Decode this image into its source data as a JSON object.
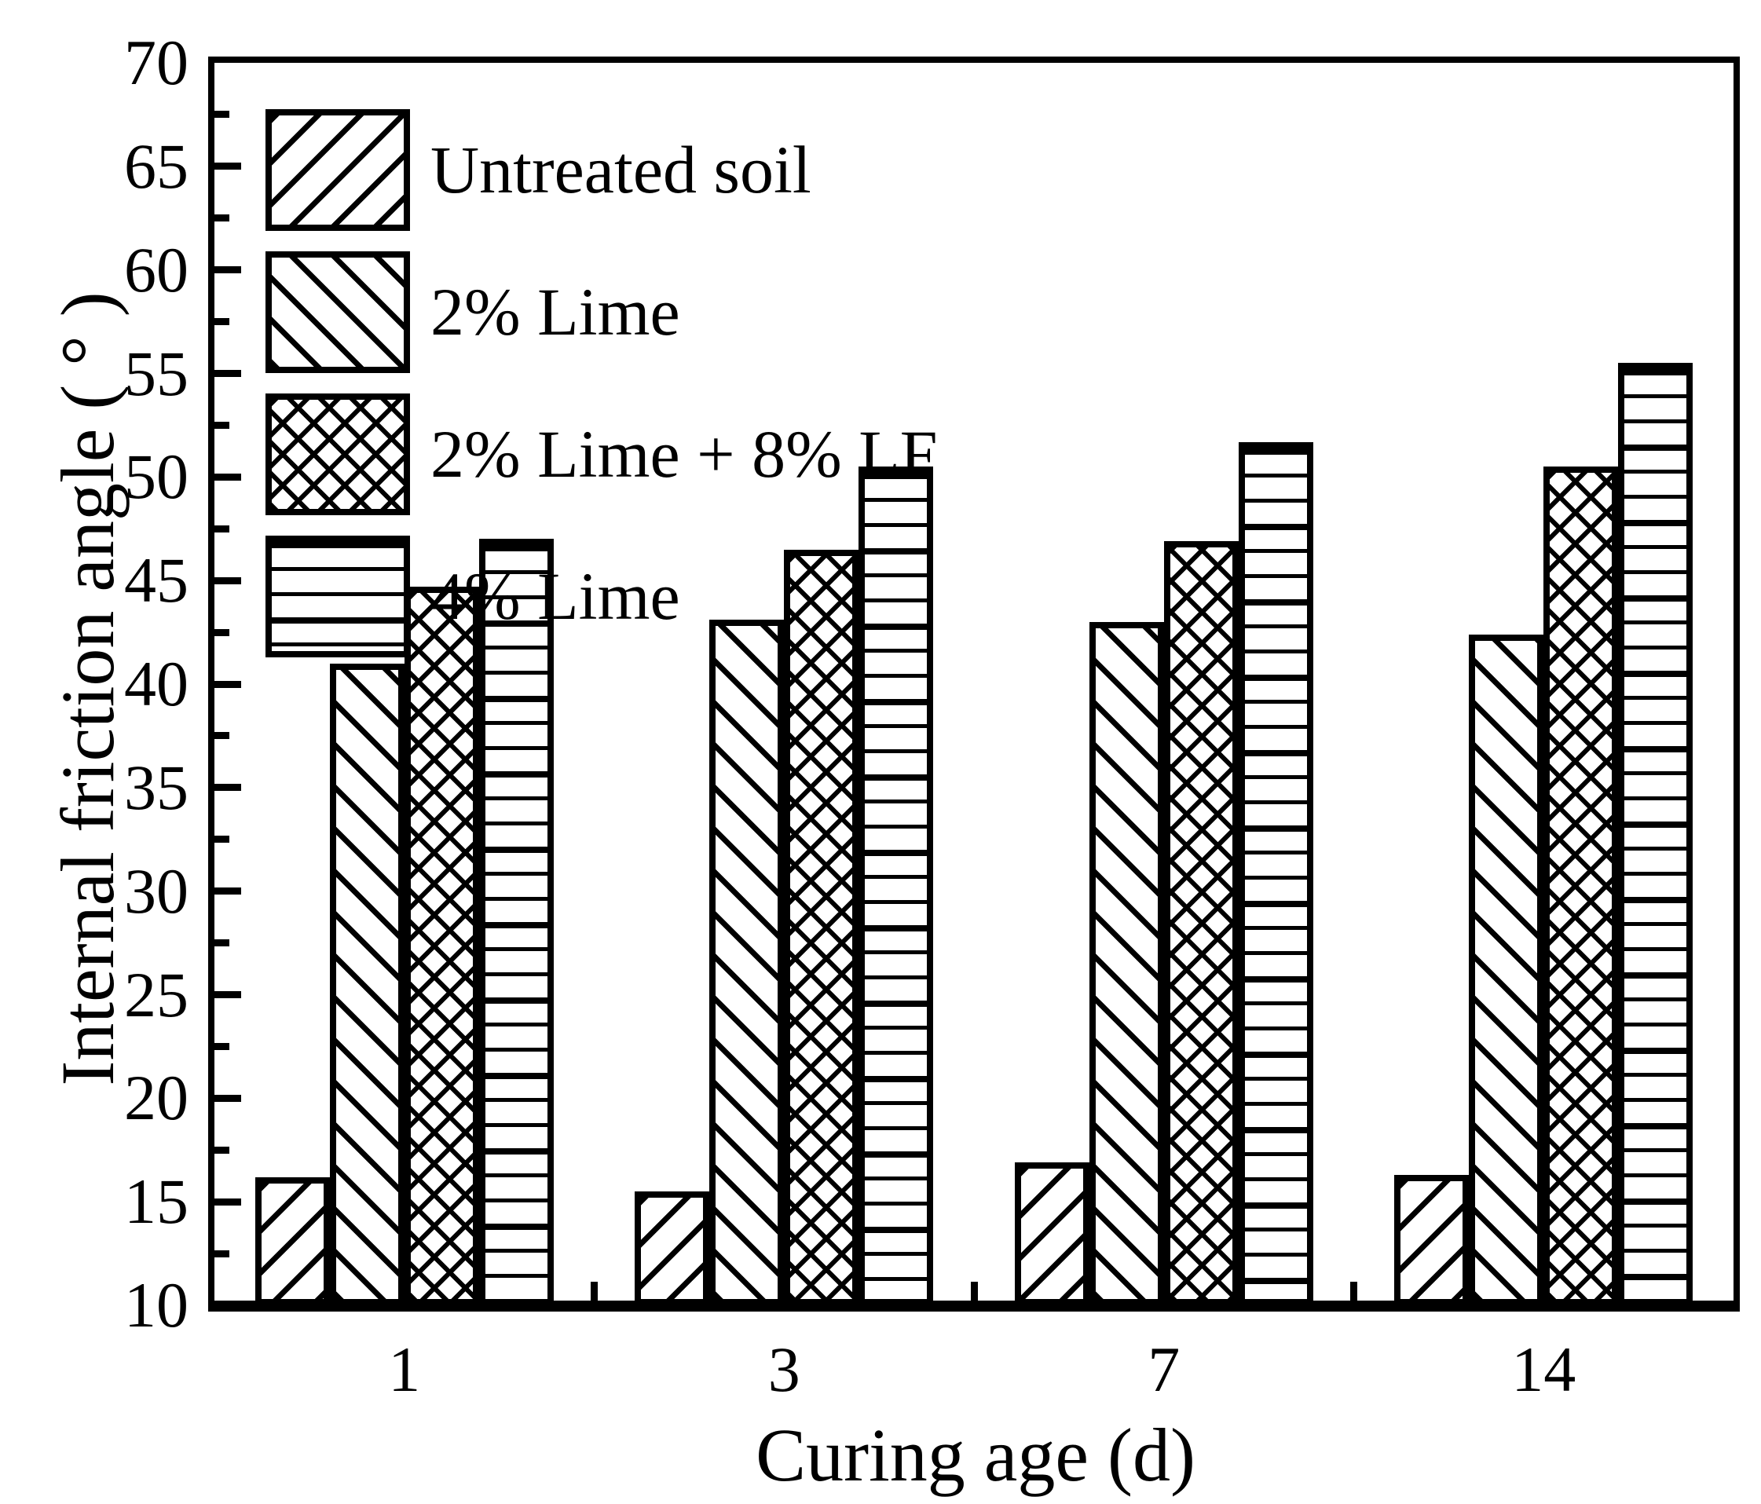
{
  "chart_data": {
    "type": "bar",
    "title": "",
    "xlabel": "Curing age (d)",
    "ylabel": "Internal friction angle ( ° )",
    "categories": [
      "1",
      "3",
      "7",
      "14"
    ],
    "series": [
      {
        "name": "Untreated soil",
        "pattern": "diag-forward",
        "values": [
          16.2,
          15.5,
          16.9,
          16.3
        ]
      },
      {
        "name": "2% Lime",
        "pattern": "diag-back",
        "values": [
          41.0,
          43.1,
          43.0,
          42.4
        ]
      },
      {
        "name": "2% Lime + 8% LF",
        "pattern": "crosshatch",
        "values": [
          44.7,
          46.5,
          46.9,
          50.5
        ]
      },
      {
        "name": "4% Lime",
        "pattern": "horizontal",
        "values": [
          47.0,
          50.5,
          51.7,
          55.5
        ]
      }
    ],
    "ylim": [
      10,
      70
    ],
    "ytick_major_step": 5,
    "ytick_minor_step": 2.5,
    "ytick_labels": [
      "10",
      "15",
      "20",
      "25",
      "30",
      "35",
      "40",
      "45",
      "50",
      "55",
      "60",
      "65",
      "70"
    ],
    "xtick_labels": [
      "1",
      "3",
      "7",
      "14"
    ],
    "legend_position": "top-left",
    "grid": false,
    "bar_color": "#000000",
    "background_color": "#ffffff"
  }
}
